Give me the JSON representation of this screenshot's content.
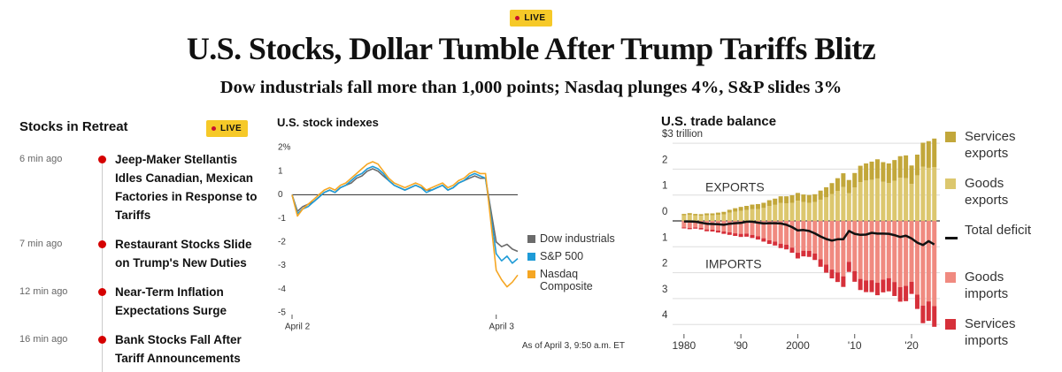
{
  "header": {
    "badge": "LIVE",
    "title": "U.S. Stocks, Dollar Tumble After Trump Tariffs Blitz",
    "subtitle": "Dow industrials fall more than 1,000 points; Nasdaq plunges 4%, S&P slides 3%"
  },
  "feed": {
    "title": "Stocks in Retreat",
    "badge": "LIVE",
    "items": [
      {
        "time": "6 min ago",
        "headline": "Jeep-Maker Stellantis Idles Canadian, Mexican Factories in Response to Tariffs"
      },
      {
        "time": "7 min ago",
        "headline": "Restaurant Stocks Slide on Trump's New Duties"
      },
      {
        "time": "12 min ago",
        "headline": "Near-Term Inflation Expectations Surge"
      },
      {
        "time": "16 min ago",
        "headline": "Bank Stocks Fall After Tariff Announcements"
      }
    ]
  },
  "chart_data": [
    {
      "type": "line",
      "title": "U.S. stock indexes",
      "note": "As of April 3, 9:50 a.m. ET",
      "x": [
        0,
        1,
        2,
        3,
        4,
        5,
        6,
        7,
        8,
        9,
        10,
        11,
        12,
        13,
        14,
        15,
        16,
        17,
        18,
        19,
        20,
        21,
        22,
        23,
        24,
        25,
        26,
        27,
        28,
        29,
        30,
        31,
        32,
        33,
        34,
        35,
        36,
        38,
        39,
        40,
        41,
        42
      ],
      "xlim": [
        0,
        42
      ],
      "xticks": [
        {
          "value": 0,
          "label": "April 2"
        },
        {
          "value": 38,
          "label": "April 3"
        }
      ],
      "ylim": [
        -5,
        2
      ],
      "yticks": [
        {
          "value": 2,
          "label": "2%"
        },
        1,
        0,
        -1,
        -2,
        -3,
        -4,
        -5
      ],
      "zero_line": true,
      "legend": "right",
      "series": [
        {
          "name": "Dow industrials",
          "color": "#6b6b6b",
          "values": [
            0,
            -0.7,
            -0.5,
            -0.4,
            -0.3,
            -0.1,
            0.1,
            0.2,
            0.1,
            0.3,
            0.4,
            0.5,
            0.7,
            0.8,
            1.0,
            1.1,
            1.0,
            0.8,
            0.6,
            0.4,
            0.3,
            0.2,
            0.3,
            0.4,
            0.3,
            0.2,
            0.2,
            0.3,
            0.4,
            0.2,
            0.3,
            0.5,
            0.6,
            0.7,
            0.8,
            0.7,
            0.7,
            -2.0,
            -2.2,
            -2.1,
            -2.3,
            -2.4
          ]
        },
        {
          "name": "S&P 500",
          "color": "#1f9bd7",
          "values": [
            0,
            -0.8,
            -0.6,
            -0.5,
            -0.3,
            -0.1,
            0.1,
            0.2,
            0.1,
            0.3,
            0.4,
            0.6,
            0.8,
            0.9,
            1.1,
            1.2,
            1.1,
            0.9,
            0.6,
            0.4,
            0.3,
            0.2,
            0.3,
            0.4,
            0.3,
            0.1,
            0.2,
            0.3,
            0.4,
            0.2,
            0.3,
            0.5,
            0.6,
            0.8,
            0.9,
            0.8,
            0.7,
            -2.5,
            -2.8,
            -2.6,
            -2.9,
            -2.7
          ]
        },
        {
          "name": "Nasdaq Composite",
          "color": "#f5a623",
          "values": [
            0,
            -0.9,
            -0.6,
            -0.4,
            -0.2,
            0,
            0.2,
            0.3,
            0.2,
            0.4,
            0.5,
            0.7,
            0.9,
            1.1,
            1.3,
            1.4,
            1.3,
            1.0,
            0.7,
            0.5,
            0.4,
            0.3,
            0.4,
            0.5,
            0.4,
            0.2,
            0.3,
            0.4,
            0.5,
            0.3,
            0.4,
            0.6,
            0.7,
            0.9,
            1.0,
            0.9,
            0.9,
            -3.2,
            -3.6,
            -3.9,
            -3.7,
            -3.4
          ]
        }
      ]
    },
    {
      "type": "bar",
      "title": "U.S. trade balance",
      "stacked": true,
      "annotations": [
        "EXPORTS",
        "IMPORTS"
      ],
      "x": [
        1980,
        1981,
        1982,
        1983,
        1984,
        1985,
        1986,
        1987,
        1988,
        1989,
        1990,
        1991,
        1992,
        1993,
        1994,
        1995,
        1996,
        1997,
        1998,
        1999,
        2000,
        2001,
        2002,
        2003,
        2004,
        2005,
        2006,
        2007,
        2008,
        2009,
        2010,
        2011,
        2012,
        2013,
        2014,
        2015,
        2016,
        2017,
        2018,
        2019,
        2020,
        2021,
        2022,
        2023,
        2024
      ],
      "xlim": [
        1978,
        2026
      ],
      "xticks": [
        1980,
        {
          "value": 1990,
          "label": "'90"
        },
        2000,
        {
          "value": 2010,
          "label": "'10"
        },
        {
          "value": 2020,
          "label": "'20"
        }
      ],
      "ylim": [
        -4.3,
        3.3
      ],
      "yticks": [
        {
          "value": 3,
          "label": "$3 trillion"
        },
        2,
        1,
        0,
        {
          "value": -1,
          "label": "1"
        },
        {
          "value": -2,
          "label": "2"
        },
        {
          "value": -3,
          "label": "3"
        },
        {
          "value": -4,
          "label": "4"
        }
      ],
      "grid": true,
      "zero_line": true,
      "legend": "right",
      "series": [
        {
          "name": "Services exports",
          "color": "#c2a73a",
          "values": [
            0.05,
            0.06,
            0.06,
            0.06,
            0.07,
            0.07,
            0.09,
            0.1,
            0.11,
            0.13,
            0.15,
            0.16,
            0.18,
            0.19,
            0.2,
            0.22,
            0.24,
            0.26,
            0.27,
            0.29,
            0.3,
            0.29,
            0.3,
            0.3,
            0.35,
            0.39,
            0.42,
            0.49,
            0.53,
            0.51,
            0.56,
            0.63,
            0.66,
            0.7,
            0.74,
            0.76,
            0.76,
            0.8,
            0.83,
            0.88,
            0.71,
            0.8,
            0.93,
            1.03,
            1.1
          ]
        },
        {
          "name": "Goods exports",
          "color": "#dcc76e",
          "values": [
            0.22,
            0.24,
            0.21,
            0.2,
            0.22,
            0.22,
            0.23,
            0.25,
            0.32,
            0.36,
            0.39,
            0.42,
            0.45,
            0.46,
            0.5,
            0.58,
            0.62,
            0.69,
            0.68,
            0.7,
            0.78,
            0.73,
            0.7,
            0.73,
            0.82,
            0.91,
            1.04,
            1.16,
            1.31,
            1.07,
            1.29,
            1.5,
            1.56,
            1.59,
            1.64,
            1.51,
            1.46,
            1.55,
            1.67,
            1.65,
            1.43,
            1.76,
            2.09,
            2.05,
            2.08
          ]
        },
        {
          "name": "Total deficit",
          "type": "line",
          "color": "#111111",
          "values": [
            -0.02,
            -0.02,
            -0.03,
            -0.07,
            -0.11,
            -0.12,
            -0.13,
            -0.15,
            -0.11,
            -0.09,
            -0.08,
            -0.03,
            -0.03,
            -0.07,
            -0.1,
            -0.09,
            -0.09,
            -0.1,
            -0.15,
            -0.24,
            -0.37,
            -0.35,
            -0.39,
            -0.48,
            -0.6,
            -0.7,
            -0.76,
            -0.71,
            -0.71,
            -0.39,
            -0.5,
            -0.54,
            -0.53,
            -0.46,
            -0.49,
            -0.49,
            -0.5,
            -0.55,
            -0.62,
            -0.57,
            -0.68,
            -0.84,
            -0.93,
            -0.78,
            -0.91
          ]
        },
        {
          "name": "Goods imports",
          "color": "#f08a80",
          "values": [
            -0.25,
            -0.27,
            -0.25,
            -0.27,
            -0.33,
            -0.34,
            -0.37,
            -0.41,
            -0.44,
            -0.48,
            -0.5,
            -0.49,
            -0.54,
            -0.59,
            -0.67,
            -0.75,
            -0.8,
            -0.88,
            -0.92,
            -1.03,
            -1.23,
            -1.15,
            -1.16,
            -1.26,
            -1.48,
            -1.69,
            -1.88,
            -1.99,
            -2.14,
            -1.58,
            -1.94,
            -2.24,
            -2.3,
            -2.29,
            -2.39,
            -2.27,
            -2.21,
            -2.36,
            -2.56,
            -2.51,
            -2.35,
            -2.85,
            -3.27,
            -3.11,
            -3.29
          ]
        },
        {
          "name": "Services imports",
          "color": "#d6303a",
          "values": [
            -0.04,
            -0.05,
            -0.05,
            -0.06,
            -0.07,
            -0.07,
            -0.08,
            -0.09,
            -0.1,
            -0.1,
            -0.12,
            -0.12,
            -0.12,
            -0.13,
            -0.13,
            -0.14,
            -0.15,
            -0.17,
            -0.18,
            -0.2,
            -0.22,
            -0.22,
            -0.23,
            -0.25,
            -0.29,
            -0.31,
            -0.34,
            -0.37,
            -0.41,
            -0.39,
            -0.41,
            -0.43,
            -0.45,
            -0.46,
            -0.48,
            -0.49,
            -0.51,
            -0.54,
            -0.56,
            -0.59,
            -0.47,
            -0.55,
            -0.68,
            -0.75,
            -0.8
          ]
        }
      ]
    }
  ]
}
